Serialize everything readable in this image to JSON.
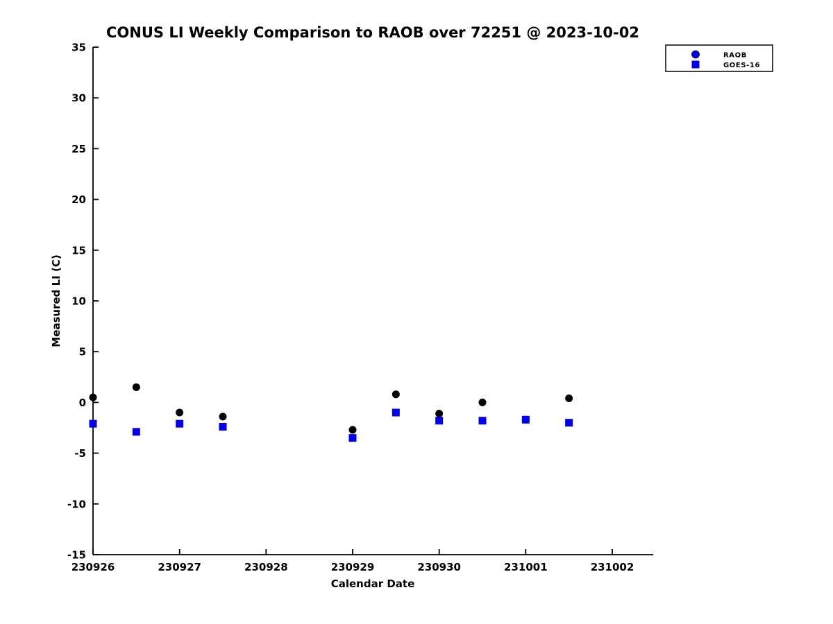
{
  "figure": {
    "background_color": "#ffffff",
    "text_color": "#000000"
  },
  "chart_data": {
    "type": "scatter",
    "title": "CONUS LI Weekly Comparison to RAOB over 72251 @ 2023-10-02",
    "xlabel": "Calendar Date",
    "ylabel": "Measured LI (C)",
    "x_tick_labels": [
      "230926",
      "230927",
      "230928",
      "230929",
      "230930",
      "231001",
      "231002"
    ],
    "x_tick_days": [
      0,
      1,
      2,
      3,
      4,
      5,
      6
    ],
    "x_unit": "days since 230926 (0.5 = 12Z sounding)",
    "y_ticks": [
      35,
      30,
      25,
      20,
      15,
      10,
      5,
      0,
      -5,
      -10,
      -15
    ],
    "ylim": [
      -15,
      35
    ],
    "grid": false,
    "box": false,
    "tick_direction": "in",
    "legend": {
      "position": "top-right",
      "entries": [
        {
          "label": "RAOB",
          "marker": "circle",
          "marker_color": "#0000ee"
        },
        {
          "label": "GOES-16",
          "marker": "square",
          "marker_color": "#0000ee"
        }
      ]
    },
    "series": [
      {
        "name": "RAOB",
        "marker": "circle",
        "color": "#000000",
        "points": [
          [
            0.0,
            0.5
          ],
          [
            0.5,
            1.5
          ],
          [
            1.0,
            -1.0
          ],
          [
            1.5,
            -1.4
          ],
          [
            3.0,
            -2.7
          ],
          [
            3.5,
            0.8
          ],
          [
            4.0,
            -1.1
          ],
          [
            4.5,
            0.0
          ],
          [
            5.0,
            -1.7
          ],
          [
            5.5,
            0.4
          ]
        ]
      },
      {
        "name": "GOES-16",
        "marker": "square",
        "color": "#0000ee",
        "points": [
          [
            0.0,
            -2.1
          ],
          [
            0.5,
            -2.9
          ],
          [
            1.0,
            -2.1
          ],
          [
            1.5,
            -2.4
          ],
          [
            3.0,
            -3.5
          ],
          [
            3.5,
            -1.0
          ],
          [
            4.0,
            -1.8
          ],
          [
            4.5,
            -1.8
          ],
          [
            5.0,
            -1.7
          ],
          [
            5.5,
            -2.0
          ]
        ]
      }
    ]
  }
}
